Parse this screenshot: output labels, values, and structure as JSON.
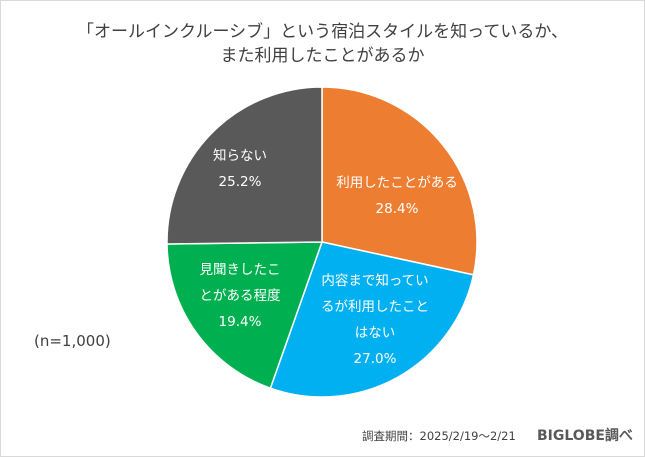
{
  "chart_data": {
    "type": "pie",
    "title_lines": [
      "「オールインクルーシブ」という宿泊スタイルを知っているか、",
      "また利用したことがあるか"
    ],
    "slices": [
      {
        "label_lines": [
          "利用したことがある"
        ],
        "value": 28.4,
        "value_label": "28.4%",
        "color": "#ED7D31"
      },
      {
        "label_lines": [
          "内容まで知ってい",
          "るが利用したこと",
          "はない"
        ],
        "value": 27.0,
        "value_label": "27.0%",
        "color": "#00B0F0"
      },
      {
        "label_lines": [
          "見聞きしたこ",
          "とがある程度"
        ],
        "value": 19.4,
        "value_label": "19.4%",
        "color": "#00B050"
      },
      {
        "label_lines": [
          "知らない"
        ],
        "value": 25.2,
        "value_label": "25.2%",
        "color": "#595959"
      }
    ],
    "start": "12 o'clock",
    "direction": "clockwise",
    "sample_note": "(n=1,000)"
  },
  "footer": {
    "period": "調査期間：2025/2/19～2/21",
    "brand": "BIGLOBE調べ"
  }
}
